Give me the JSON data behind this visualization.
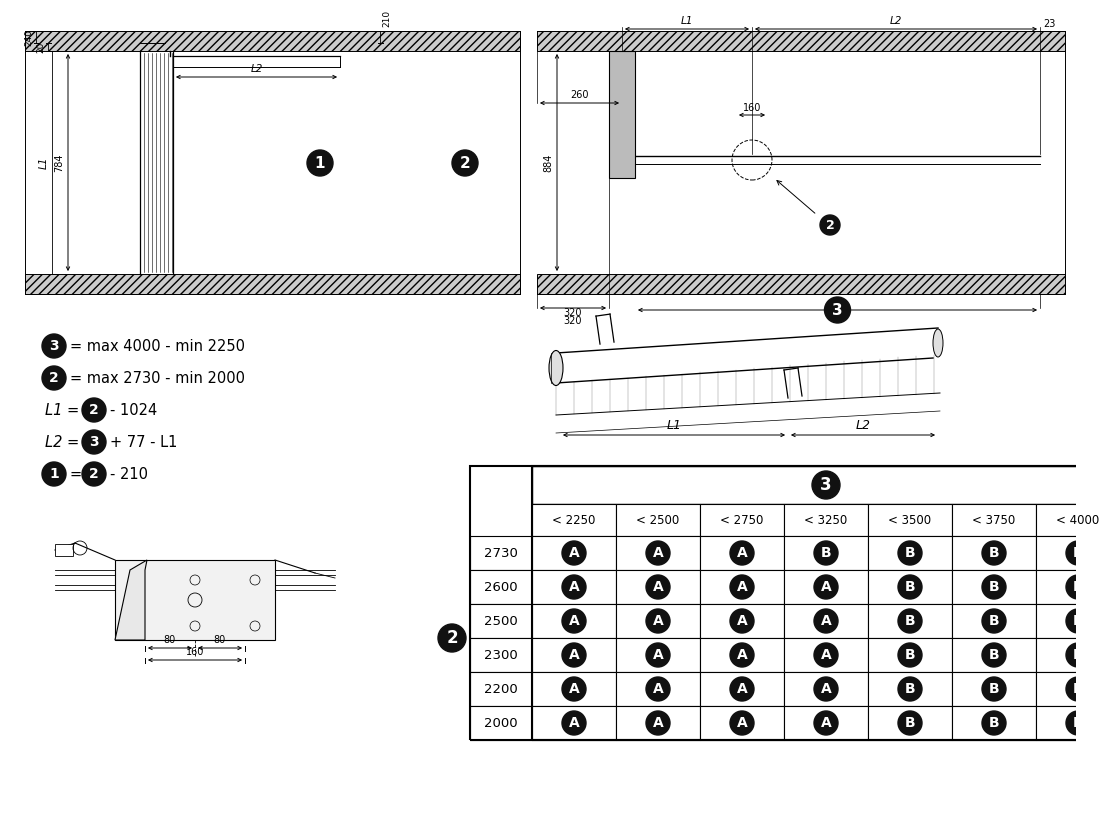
{
  "bg_color": "#ffffff",
  "lc": "#000000",
  "badge_bg": "#111111",
  "badge_fg": "#ffffff",
  "col_headers": [
    "< 2250",
    "< 2500",
    "< 2750",
    "< 3250",
    "< 3500",
    "< 3750",
    "< 4000"
  ],
  "row_values": [
    "2730",
    "2600",
    "2500",
    "2300",
    "2200",
    "2000"
  ],
  "table_data": [
    [
      "A",
      "A",
      "A",
      "B",
      "B",
      "B",
      "B"
    ],
    [
      "A",
      "A",
      "A",
      "A",
      "B",
      "B",
      "B"
    ],
    [
      "A",
      "A",
      "A",
      "A",
      "B",
      "B",
      "B"
    ],
    [
      "A",
      "A",
      "A",
      "A",
      "B",
      "B",
      "B"
    ],
    [
      "A",
      "A",
      "A",
      "A",
      "B",
      "B",
      "B"
    ],
    [
      "A",
      "A",
      "A",
      "A",
      "B",
      "B",
      "B"
    ]
  ]
}
